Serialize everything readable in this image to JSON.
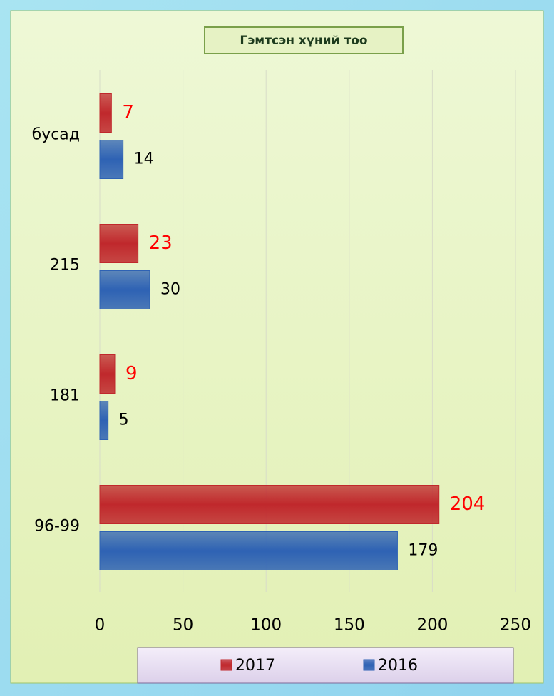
{
  "chart_data": {
    "type": "hbar",
    "title": "Гэмтсэн хүний тоо",
    "categories": [
      "бусад",
      "215",
      "181",
      "96-99"
    ],
    "series": [
      {
        "name": "2017",
        "color": "#c0282c",
        "label_color": "#ff0000",
        "values": [
          7,
          23,
          9,
          204
        ]
      },
      {
        "name": "2016",
        "color": "#2e62b4",
        "label_color": "#000000",
        "values": [
          14,
          30,
          5,
          179
        ]
      }
    ],
    "xlim": [
      0,
      250
    ],
    "xticks": [
      0,
      50,
      100,
      150,
      200,
      250
    ],
    "grid": true,
    "legend": "bottom"
  }
}
